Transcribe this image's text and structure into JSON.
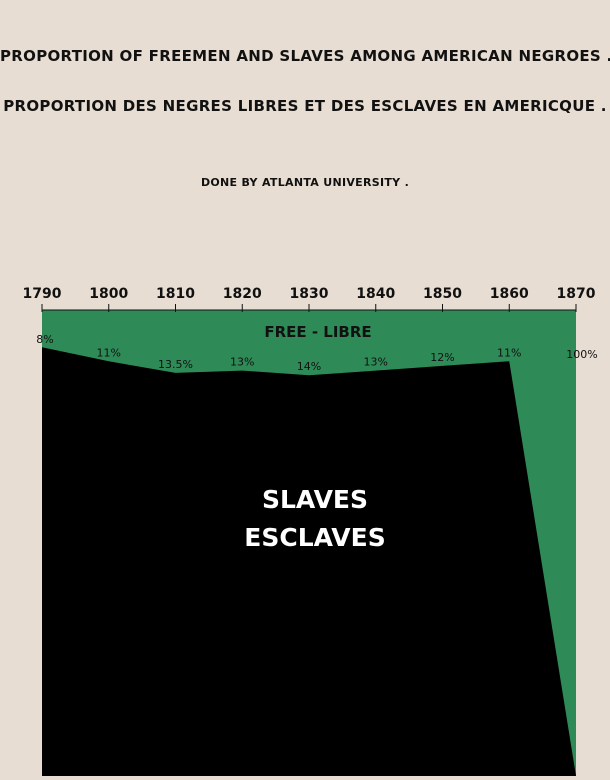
{
  "header": {
    "title_en": "PROPORTION OF FREEMEN AND SLAVES AMONG AMERICAN NEGROES .",
    "title_fr": "PROPORTION DES NEGRES LIBRES ET DES ESCLAVES EN AMERICQUE .",
    "credit": "DONE BY ATLANTA UNIVERSITY ."
  },
  "colors": {
    "background": "#e8ddd2",
    "free": "#2e8b57",
    "slaves": "#000000"
  },
  "chart_data": {
    "type": "area",
    "x": [
      1790,
      1800,
      1810,
      1820,
      1830,
      1840,
      1850,
      1860,
      1870
    ],
    "xlabels": [
      "1790",
      "1800",
      "1810",
      "1820",
      "1830",
      "1840",
      "1850",
      "1860",
      "1870"
    ],
    "free_percent": [
      8,
      11,
      13.5,
      13,
      14,
      13,
      12,
      11,
      100
    ],
    "data_labels": [
      "8%",
      "11%",
      "13.5%",
      "13%",
      "14%",
      "13%",
      "12%",
      "11%",
      "100%"
    ],
    "ylim": [
      0,
      100
    ],
    "series": [
      {
        "name": "FREE - LIBRE",
        "color": "#2e8b57"
      },
      {
        "name_line1": "SLAVES",
        "name_line2": "ESCLAVES",
        "color": "#000000"
      }
    ],
    "grid": false
  }
}
